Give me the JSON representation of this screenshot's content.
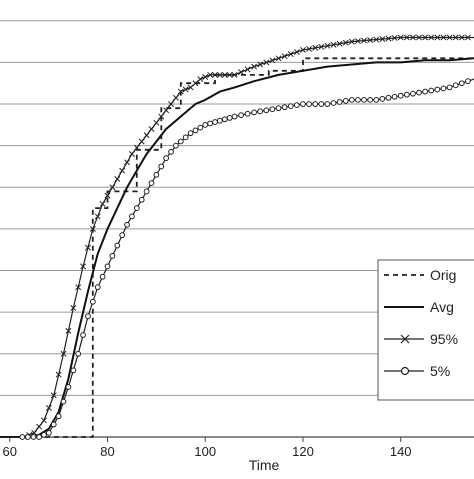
{
  "chart_data": {
    "type": "line",
    "xlabel": "Time",
    "ylabel": "",
    "title": "",
    "xlim": [
      58,
      155
    ],
    "ylim": [
      0,
      1.05
    ],
    "x_ticks": [
      60,
      80,
      100,
      120,
      140
    ],
    "y_gridlines": [
      0.1,
      0.2,
      0.3,
      0.4,
      0.5,
      0.6,
      0.7,
      0.8,
      0.9,
      1.0
    ],
    "grid": true,
    "legend_position": "right",
    "series": [
      {
        "name": "Orig",
        "style": "dashed",
        "color": "#222222",
        "x": [
          58,
          77,
          77,
          77,
          80,
          80,
          86,
          86,
          91,
          91,
          95,
          95,
          102,
          102,
          113,
          113,
          120,
          120,
          155
        ],
        "y": [
          0,
          0,
          0.0,
          0.55,
          0.55,
          0.59,
          0.59,
          0.69,
          0.69,
          0.79,
          0.79,
          0.85,
          0.85,
          0.87,
          0.87,
          0.88,
          0.88,
          0.91,
          0.91
        ]
      },
      {
        "name": "Avg",
        "style": "solid",
        "color": "#111111",
        "x": [
          58,
          64,
          66,
          68,
          70,
          72,
          74,
          76,
          78,
          80,
          82,
          84,
          86,
          88,
          90,
          92,
          95,
          98,
          100,
          103,
          106,
          110,
          115,
          120,
          125,
          130,
          135,
          140,
          145,
          150,
          155
        ],
        "y": [
          0,
          0.0,
          0.005,
          0.02,
          0.06,
          0.14,
          0.25,
          0.35,
          0.44,
          0.5,
          0.55,
          0.6,
          0.64,
          0.68,
          0.71,
          0.74,
          0.77,
          0.8,
          0.81,
          0.83,
          0.84,
          0.855,
          0.87,
          0.88,
          0.89,
          0.895,
          0.9,
          0.9,
          0.905,
          0.905,
          0.91
        ]
      },
      {
        "name": "95%",
        "style": "cross",
        "color": "#222222",
        "x": [
          58,
          63,
          65,
          67,
          69,
          71,
          73,
          75,
          77,
          79,
          81,
          83,
          85,
          87,
          89,
          91,
          93,
          95,
          97,
          99,
          101,
          103,
          106,
          110,
          115,
          120,
          125,
          130,
          135,
          140,
          145,
          150,
          155
        ],
        "y": [
          0,
          0.0,
          0.01,
          0.04,
          0.1,
          0.2,
          0.31,
          0.41,
          0.5,
          0.56,
          0.6,
          0.64,
          0.68,
          0.71,
          0.74,
          0.77,
          0.8,
          0.83,
          0.84,
          0.86,
          0.87,
          0.87,
          0.87,
          0.89,
          0.91,
          0.93,
          0.94,
          0.95,
          0.955,
          0.96,
          0.96,
          0.96,
          0.96
        ]
      },
      {
        "name": "5%",
        "style": "circle",
        "color": "#222222",
        "x": [
          58,
          66,
          68,
          70,
          72,
          74,
          76,
          78,
          80,
          82,
          84,
          86,
          88,
          90,
          92,
          94,
          97,
          100,
          103,
          106,
          110,
          115,
          120,
          125,
          130,
          135,
          140,
          145,
          150,
          155
        ],
        "y": [
          0,
          0.0,
          0.01,
          0.05,
          0.12,
          0.2,
          0.29,
          0.36,
          0.41,
          0.46,
          0.51,
          0.55,
          0.59,
          0.63,
          0.67,
          0.7,
          0.73,
          0.75,
          0.76,
          0.77,
          0.78,
          0.79,
          0.8,
          0.8,
          0.81,
          0.81,
          0.82,
          0.83,
          0.84,
          0.86
        ]
      }
    ]
  }
}
